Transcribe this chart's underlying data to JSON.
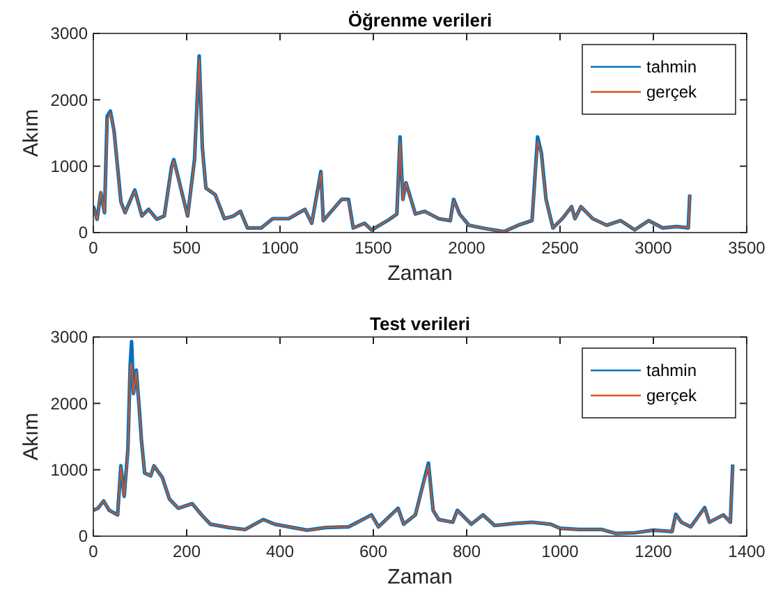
{
  "chart_data": [
    {
      "type": "line",
      "title": "Öğrenme verileri",
      "xlabel": "Zaman",
      "ylabel": "Akım",
      "xlim": [
        0,
        3500
      ],
      "ylim": [
        0,
        3000
      ],
      "xticks": [
        0,
        500,
        1000,
        1500,
        2000,
        2500,
        3000,
        3500
      ],
      "yticks": [
        0,
        1000,
        2000,
        3000
      ],
      "legend": "top right",
      "grid": false,
      "x": [
        0,
        20,
        40,
        60,
        74,
        91,
        111,
        148,
        170,
        222,
        260,
        296,
        340,
        380,
        419,
        431,
        505,
        542,
        567,
        584,
        603,
        653,
        702,
        751,
        788,
        825,
        900,
        961,
        1047,
        1133,
        1170,
        1219,
        1232,
        1330,
        1367,
        1392,
        1453,
        1490,
        1576,
        1626,
        1643,
        1658,
        1675,
        1725,
        1775,
        1850,
        1912,
        1930,
        1962,
        2012,
        2100,
        2200,
        2275,
        2350,
        2380,
        2400,
        2425,
        2462,
        2512,
        2562,
        2580,
        2612,
        2675,
        2750,
        2825,
        2900,
        2975,
        3050,
        3125,
        3187,
        3195
      ],
      "series": [
        {
          "name": "tahmin",
          "color": "#0072bd",
          "values": [
            400,
            200,
            600,
            300,
            1750,
            1830,
            1530,
            460,
            300,
            640,
            250,
            350,
            200,
            250,
            990,
            1100,
            250,
            1100,
            2660,
            1280,
            670,
            570,
            210,
            250,
            320,
            70,
            70,
            210,
            210,
            350,
            140,
            920,
            180,
            500,
            500,
            70,
            140,
            40,
            180,
            280,
            1440,
            500,
            750,
            280,
            320,
            210,
            180,
            500,
            280,
            110,
            60,
            15,
            110,
            180,
            1440,
            1200,
            500,
            70,
            210,
            390,
            210,
            390,
            210,
            110,
            180,
            40,
            180,
            70,
            90,
            70,
            570
          ]
        },
        {
          "name": "gerçek",
          "color": "#d95319",
          "values": [
            380,
            200,
            620,
            300,
            1700,
            1800,
            1520,
            450,
            300,
            630,
            250,
            340,
            200,
            250,
            960,
            1080,
            250,
            1080,
            2620,
            1260,
            670,
            570,
            210,
            250,
            320,
            70,
            70,
            210,
            210,
            350,
            140,
            900,
            180,
            500,
            480,
            70,
            140,
            40,
            180,
            280,
            1380,
            480,
            750,
            280,
            320,
            210,
            180,
            480,
            280,
            110,
            60,
            15,
            110,
            180,
            1380,
            1180,
            480,
            70,
            210,
            390,
            210,
            390,
            210,
            110,
            180,
            40,
            180,
            70,
            90,
            70,
            580
          ]
        }
      ]
    },
    {
      "type": "line",
      "title": "Test verileri",
      "xlabel": "Zaman",
      "ylabel": "Akım",
      "xlim": [
        0,
        1400
      ],
      "ylim": [
        0,
        3000
      ],
      "xticks": [
        0,
        200,
        400,
        600,
        800,
        1000,
        1200,
        1400
      ],
      "yticks": [
        0,
        1000,
        2000,
        3000
      ],
      "legend": "top right",
      "grid": false,
      "x": [
        0,
        10,
        22,
        34,
        52,
        59,
        66,
        74,
        79,
        82,
        86,
        92,
        99,
        103,
        110,
        123,
        130,
        148,
        163,
        182,
        212,
        232,
        251,
        291,
        325,
        364,
        389,
        419,
        458,
        498,
        547,
        596,
        611,
        653,
        665,
        690,
        718,
        728,
        740,
        770,
        780,
        810,
        835,
        860,
        900,
        940,
        980,
        1000,
        1040,
        1090,
        1120,
        1160,
        1200,
        1240,
        1248,
        1260,
        1280,
        1310,
        1320,
        1350,
        1365,
        1370
      ],
      "series": [
        {
          "name": "tahmin",
          "color": "#0072bd",
          "values": [
            390,
            420,
            530,
            390,
            320,
            1060,
            600,
            1300,
            2580,
            2930,
            2150,
            2500,
            1870,
            1450,
            950,
            910,
            1060,
            880,
            560,
            420,
            490,
            320,
            180,
            130,
            100,
            250,
            180,
            140,
            90,
            130,
            140,
            320,
            140,
            420,
            180,
            320,
            1100,
            390,
            250,
            210,
            390,
            180,
            320,
            160,
            190,
            210,
            180,
            120,
            100,
            100,
            40,
            50,
            90,
            70,
            330,
            210,
            140,
            430,
            210,
            320,
            210,
            1080
          ]
        },
        {
          "name": "gerçek",
          "color": "#d95319",
          "values": [
            390,
            420,
            530,
            390,
            320,
            1040,
            600,
            1250,
            2550,
            2600,
            2150,
            2480,
            1870,
            1450,
            950,
            910,
            1060,
            880,
            560,
            420,
            490,
            320,
            180,
            130,
            100,
            240,
            180,
            140,
            90,
            130,
            140,
            310,
            140,
            410,
            180,
            320,
            1060,
            390,
            250,
            210,
            380,
            180,
            320,
            160,
            190,
            210,
            180,
            120,
            100,
            100,
            40,
            50,
            90,
            70,
            310,
            210,
            140,
            410,
            210,
            320,
            210,
            1060
          ]
        }
      ]
    }
  ]
}
